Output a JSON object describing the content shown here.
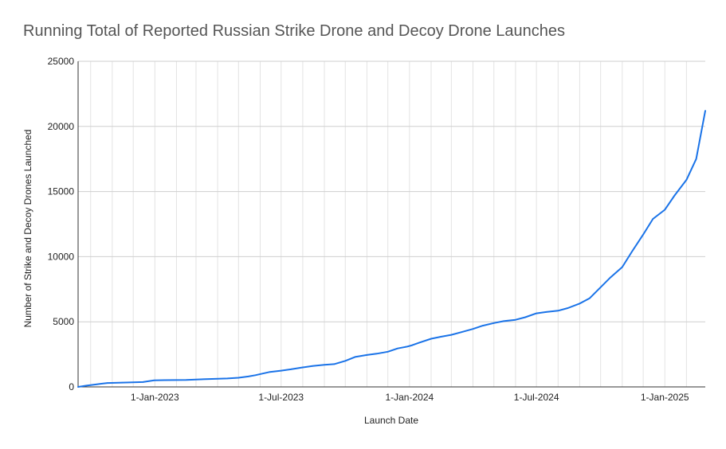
{
  "chart_data": {
    "type": "line",
    "title": "Running Total of Reported Russian Strike Drone and Decoy Drone Launches",
    "xlabel": "Launch Date",
    "ylabel": "Number of Strike and Decoy Drones Launched",
    "ylim": [
      0,
      25000
    ],
    "yticks": [
      "0",
      "5000",
      "10000",
      "15000",
      "20000",
      "25000"
    ],
    "xlim": [
      "2022-09-13",
      "2025-02-28"
    ],
    "xticks": [
      {
        "date": "2023-01-01",
        "label": "1-Jan-2023"
      },
      {
        "date": "2023-07-01",
        "label": "1-Jul-2023"
      },
      {
        "date": "2024-01-01",
        "label": "1-Jan-2024"
      },
      {
        "date": "2024-07-01",
        "label": "1-Jul-2024"
      },
      {
        "date": "2025-01-01",
        "label": "1-Jan-2025"
      }
    ],
    "grid": true,
    "line_color": "#1a73e8",
    "series": [
      {
        "x": [
          "2022-09-13",
          "2022-09-25",
          "2022-10-10",
          "2022-10-25",
          "2022-11-15",
          "2022-12-15",
          "2022-12-31",
          "2023-01-15",
          "2023-02-15",
          "2023-03-15",
          "2023-04-15",
          "2023-05-01",
          "2023-05-15",
          "2023-05-25",
          "2023-06-15",
          "2023-07-01",
          "2023-07-15",
          "2023-08-01",
          "2023-08-15",
          "2023-09-01",
          "2023-09-15",
          "2023-10-01",
          "2023-10-15",
          "2023-11-01",
          "2023-11-15",
          "2023-12-01",
          "2023-12-15",
          "2023-12-29",
          "2024-01-05",
          "2024-01-15",
          "2024-02-01",
          "2024-02-15",
          "2024-03-01",
          "2024-03-15",
          "2024-04-01",
          "2024-04-15",
          "2024-05-01",
          "2024-05-15",
          "2024-06-01",
          "2024-06-15",
          "2024-07-01",
          "2024-07-15",
          "2024-08-01",
          "2024-08-15",
          "2024-09-01",
          "2024-09-15",
          "2024-10-01",
          "2024-10-15",
          "2024-11-01",
          "2024-11-15",
          "2024-12-01",
          "2024-12-15",
          "2025-01-01",
          "2025-01-15",
          "2025-02-01",
          "2025-02-15",
          "2025-02-28"
        ],
        "values": [
          0,
          100,
          200,
          300,
          330,
          370,
          500,
          520,
          540,
          600,
          650,
          700,
          800,
          900,
          1150,
          1250,
          1350,
          1500,
          1600,
          1700,
          1750,
          2000,
          2300,
          2450,
          2550,
          2700,
          2950,
          3100,
          3200,
          3400,
          3700,
          3850,
          4000,
          4200,
          4450,
          4700,
          4900,
          5050,
          5150,
          5350,
          5650,
          5750,
          5850,
          6050,
          6400,
          6800,
          7650,
          8400,
          9200,
          10400,
          11700,
          12900,
          13600,
          14700,
          15900,
          17500,
          21200
        ]
      }
    ]
  }
}
